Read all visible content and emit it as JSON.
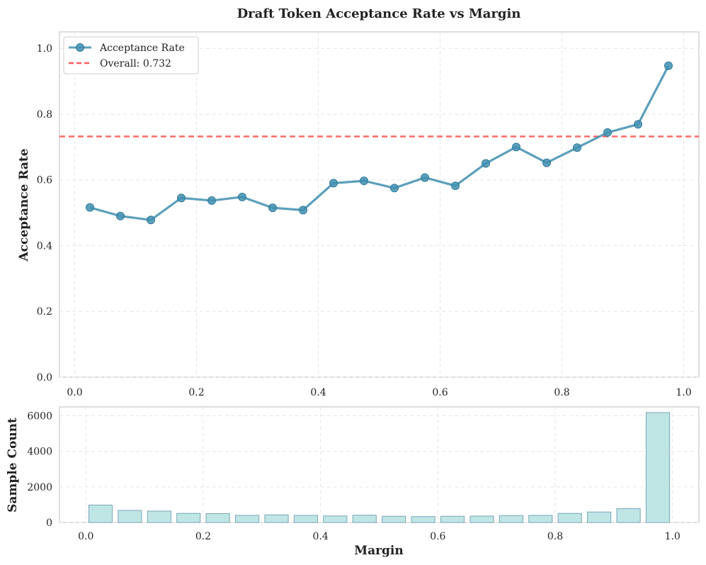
{
  "chart_data": [
    {
      "type": "line",
      "title": "Draft Token Acceptance Rate vs Margin",
      "xlabel": "",
      "ylabel": "Acceptance Rate",
      "xlim": [
        -0.025,
        1.025
      ],
      "ylim": [
        0.0,
        1.05
      ],
      "xticks": [
        0.0,
        0.2,
        0.4,
        0.6,
        0.8,
        1.0
      ],
      "xtick_labels": [
        "0.0",
        "0.2",
        "0.4",
        "0.6",
        "0.8",
        "1.0"
      ],
      "yticks": [
        0.0,
        0.2,
        0.4,
        0.6,
        0.8,
        1.0
      ],
      "ytick_labels": [
        "0.0",
        "0.2",
        "0.4",
        "0.6",
        "0.8",
        "1.0"
      ],
      "grid": true,
      "legend_position": "top-left",
      "series": [
        {
          "name": "Acceptance Rate",
          "color": "#3f8fb0",
          "x": [
            0.025,
            0.075,
            0.125,
            0.175,
            0.225,
            0.275,
            0.325,
            0.375,
            0.425,
            0.475,
            0.525,
            0.575,
            0.625,
            0.675,
            0.725,
            0.775,
            0.825,
            0.875,
            0.925,
            0.975
          ],
          "values": [
            0.516,
            0.49,
            0.478,
            0.545,
            0.537,
            0.548,
            0.515,
            0.508,
            0.59,
            0.597,
            0.575,
            0.607,
            0.582,
            0.65,
            0.7,
            0.652,
            0.698,
            0.744,
            0.769,
            0.947
          ]
        }
      ],
      "reference_line": {
        "name": "Overall: 0.732",
        "value": 0.732,
        "color": "#ff5a5a"
      }
    },
    {
      "type": "bar",
      "title": "",
      "xlabel": "Margin",
      "ylabel": "Sample Count",
      "xlim": [
        -0.045,
        1.045
      ],
      "ylim": [
        0,
        6500
      ],
      "xticks": [
        0.0,
        0.2,
        0.4,
        0.6,
        0.8,
        1.0
      ],
      "xtick_labels": [
        "0.0",
        "0.2",
        "0.4",
        "0.6",
        "0.8",
        "1.0"
      ],
      "yticks": [
        0,
        2000,
        4000,
        6000
      ],
      "ytick_labels": [
        "0",
        "2000",
        "4000",
        "6000"
      ],
      "grid": true,
      "bar_width": 0.04,
      "color": "#b5e0e0",
      "edge_color": "#7aa6b8",
      "x": [
        0.025,
        0.075,
        0.125,
        0.175,
        0.225,
        0.275,
        0.325,
        0.375,
        0.425,
        0.475,
        0.525,
        0.575,
        0.625,
        0.675,
        0.725,
        0.775,
        0.825,
        0.875,
        0.925,
        0.975
      ],
      "values": [
        980,
        680,
        640,
        510,
        500,
        400,
        430,
        400,
        370,
        410,
        350,
        330,
        350,
        360,
        390,
        400,
        510,
        590,
        780,
        6180
      ]
    }
  ]
}
